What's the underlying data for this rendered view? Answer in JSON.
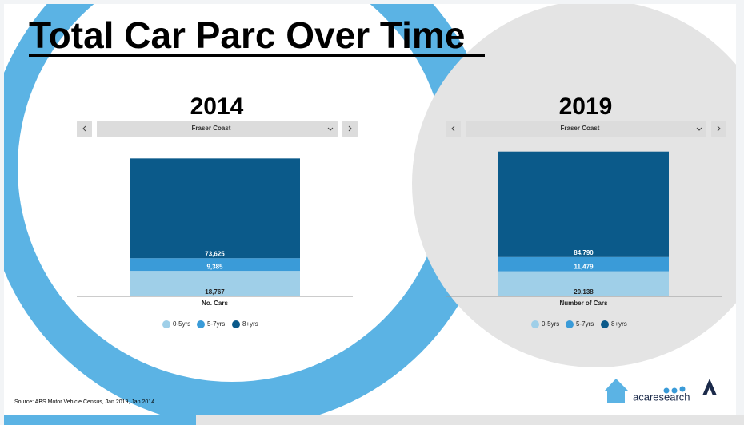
{
  "title": "Total Car Parc Over Time",
  "source": "Source: ABS Motor Vehicle Census, Jan 2019, Jan 2014",
  "logo_text": "acaresearch",
  "chart_data": [
    {
      "type": "bar",
      "stacked": true,
      "title": "2014",
      "dropdown": "Fraser Coast",
      "categories": [
        "No. Cars"
      ],
      "ylim": [
        0,
        112000
      ],
      "series": [
        {
          "name": "0-5yrs",
          "color": "#9fcfe8",
          "values": [
            18767
          ],
          "value_labels": [
            "18,767"
          ]
        },
        {
          "name": "5-7yrs",
          "color": "#3a9bd8",
          "values": [
            9385
          ],
          "value_labels": [
            "9,385"
          ]
        },
        {
          "name": "8+yrs",
          "color": "#0b5a8a",
          "values": [
            73625
          ],
          "value_labels": [
            "73,625"
          ]
        }
      ]
    },
    {
      "type": "bar",
      "stacked": true,
      "title": "2019",
      "dropdown": "Fraser Coast",
      "categories": [
        "Number of Cars"
      ],
      "ylim": [
        0,
        122000
      ],
      "series": [
        {
          "name": "0-5yrs",
          "color": "#9fcfe8",
          "values": [
            20138
          ],
          "value_labels": [
            "20,138"
          ]
        },
        {
          "name": "5-7yrs",
          "color": "#3a9bd8",
          "values": [
            11479
          ],
          "value_labels": [
            "11,479"
          ]
        },
        {
          "name": "8+yrs",
          "color": "#0b5a8a",
          "values": [
            84790
          ],
          "value_labels": [
            "84,790"
          ]
        }
      ]
    }
  ]
}
